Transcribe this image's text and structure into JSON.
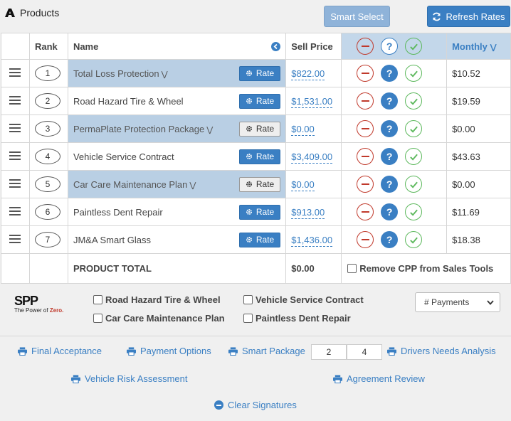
{
  "header": {
    "title": "Products",
    "smart_select_label": "Smart Select",
    "refresh_rates_label": "Refresh Rates"
  },
  "table": {
    "columns": {
      "rank": "Rank",
      "name": "Name",
      "sell_price": "Sell Price",
      "monthly": "Monthly"
    },
    "rows": [
      {
        "rank": "1",
        "name": "Total Loss Protection",
        "expandable": true,
        "highlighted": true,
        "rate_label": "Rate",
        "rate_style": "blue",
        "price": "$822.00",
        "monthly": "$10.52"
      },
      {
        "rank": "2",
        "name": "Road Hazard Tire & Wheel",
        "expandable": false,
        "highlighted": false,
        "rate_label": "Rate",
        "rate_style": "blue",
        "price": "$1,531.00",
        "monthly": "$19.59"
      },
      {
        "rank": "3",
        "name": "PermaPlate Protection Package",
        "expandable": true,
        "highlighted": true,
        "rate_label": "Rate",
        "rate_style": "grey",
        "price": "$0.00",
        "monthly": "$0.00"
      },
      {
        "rank": "4",
        "name": "Vehicle Service Contract",
        "expandable": false,
        "highlighted": false,
        "rate_label": "Rate",
        "rate_style": "blue",
        "price": "$3,409.00",
        "monthly": "$43.63"
      },
      {
        "rank": "5",
        "name": "Car Care Maintenance Plan",
        "expandable": true,
        "highlighted": true,
        "rate_label": "Rate",
        "rate_style": "grey",
        "price": "$0.00",
        "monthly": "$0.00"
      },
      {
        "rank": "6",
        "name": "Paintless Dent Repair",
        "expandable": false,
        "highlighted": false,
        "rate_label": "Rate",
        "rate_style": "blue",
        "price": "$913.00",
        "monthly": "$11.69"
      },
      {
        "rank": "7",
        "name": "JM&A Smart Glass",
        "expandable": false,
        "highlighted": false,
        "rate_label": "Rate",
        "rate_style": "blue",
        "price": "$1,436.00",
        "monthly": "$18.38"
      }
    ],
    "total_label": "PRODUCT TOTAL",
    "total_value": "$0.00",
    "remove_cpp_label": "Remove CPP from Sales Tools"
  },
  "spp": {
    "logo_text": "SPP",
    "tagline_prefix": "The Power of ",
    "tagline_emphasis": "Zero."
  },
  "options": {
    "road_hazard": "Road Hazard Tire & Wheel",
    "vehicle_service": "Vehicle Service Contract",
    "car_care": "Car Care Maintenance Plan",
    "paintless": "Paintless Dent Repair",
    "payments_placeholder": "# Payments"
  },
  "links": {
    "final_acceptance": "Final Acceptance",
    "payment_options": "Payment Options",
    "smart_package": "Smart Package",
    "pkg_val_1": "2",
    "pkg_val_2": "4",
    "drivers_needs": "Drivers Needs Analysis",
    "vehicle_risk": "Vehicle Risk Assessment",
    "agreement_review": "Agreement Review",
    "clear_signatures": "Clear Signatures"
  },
  "colors": {
    "accent": "#3a7fc3",
    "highlight": "#b9cfe4",
    "remove": "#c0392b",
    "accept": "#5cb85c"
  }
}
